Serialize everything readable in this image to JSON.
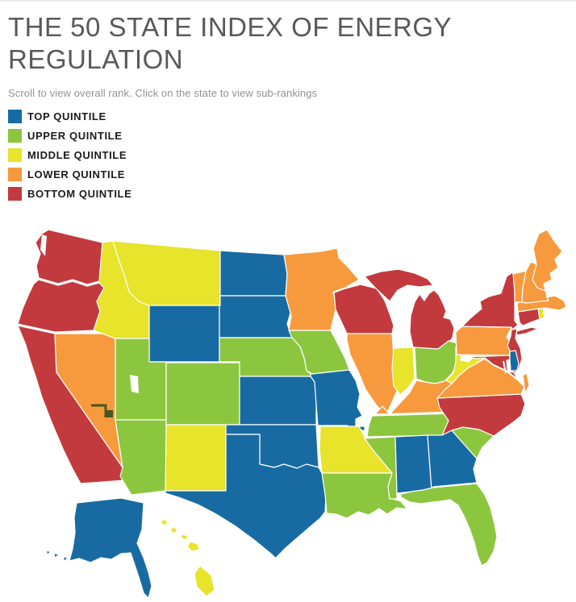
{
  "page": {
    "title": "THE 50 STATE INDEX OF ENERGY REGULATION",
    "subtitle": "Scroll to view overall rank. Click on the state to view sub-rankings"
  },
  "legend": {
    "items": [
      {
        "key": "top",
        "label": "TOP QUINTILE",
        "color": "#186BA2"
      },
      {
        "key": "upper",
        "label": "UPPER QUINTILE",
        "color": "#8CC63F"
      },
      {
        "key": "middle",
        "label": "MIDDLE QUINTILE",
        "color": "#E8E32B"
      },
      {
        "key": "lower",
        "label": "LOWER QUINTILE",
        "color": "#F79A3D"
      },
      {
        "key": "bottom",
        "label": "BOTTOM QUINTILE",
        "color": "#C23A3E"
      }
    ]
  },
  "map": {
    "states": [
      {
        "id": "WA",
        "name": "Washington",
        "quintile": "bottom"
      },
      {
        "id": "OR",
        "name": "Oregon",
        "quintile": "bottom"
      },
      {
        "id": "CA",
        "name": "California",
        "quintile": "bottom"
      },
      {
        "id": "NV",
        "name": "Nevada",
        "quintile": "lower"
      },
      {
        "id": "ID",
        "name": "Idaho",
        "quintile": "middle"
      },
      {
        "id": "MT",
        "name": "Montana",
        "quintile": "middle"
      },
      {
        "id": "WY",
        "name": "Wyoming",
        "quintile": "top"
      },
      {
        "id": "UT",
        "name": "Utah",
        "quintile": "upper"
      },
      {
        "id": "AZ",
        "name": "Arizona",
        "quintile": "upper"
      },
      {
        "id": "CO",
        "name": "Colorado",
        "quintile": "upper"
      },
      {
        "id": "NM",
        "name": "New Mexico",
        "quintile": "middle"
      },
      {
        "id": "ND",
        "name": "North Dakota",
        "quintile": "top"
      },
      {
        "id": "SD",
        "name": "South Dakota",
        "quintile": "top"
      },
      {
        "id": "NE",
        "name": "Nebraska",
        "quintile": "upper"
      },
      {
        "id": "KS",
        "name": "Kansas",
        "quintile": "top"
      },
      {
        "id": "OK",
        "name": "Oklahoma",
        "quintile": "top"
      },
      {
        "id": "TX",
        "name": "Texas",
        "quintile": "top"
      },
      {
        "id": "MN",
        "name": "Minnesota",
        "quintile": "lower"
      },
      {
        "id": "IA",
        "name": "Iowa",
        "quintile": "upper"
      },
      {
        "id": "MO",
        "name": "Missouri",
        "quintile": "top"
      },
      {
        "id": "AR",
        "name": "Arkansas",
        "quintile": "middle"
      },
      {
        "id": "LA",
        "name": "Louisiana",
        "quintile": "upper"
      },
      {
        "id": "WI",
        "name": "Wisconsin",
        "quintile": "bottom"
      },
      {
        "id": "IL",
        "name": "Illinois",
        "quintile": "lower"
      },
      {
        "id": "MI",
        "name": "Michigan",
        "quintile": "bottom"
      },
      {
        "id": "IN",
        "name": "Indiana",
        "quintile": "middle"
      },
      {
        "id": "OH",
        "name": "Ohio",
        "quintile": "upper"
      },
      {
        "id": "KY",
        "name": "Kentucky",
        "quintile": "lower"
      },
      {
        "id": "TN",
        "name": "Tennessee",
        "quintile": "upper"
      },
      {
        "id": "MS",
        "name": "Mississippi",
        "quintile": "upper"
      },
      {
        "id": "AL",
        "name": "Alabama",
        "quintile": "top"
      },
      {
        "id": "GA",
        "name": "Georgia",
        "quintile": "top"
      },
      {
        "id": "SC",
        "name": "South Carolina",
        "quintile": "upper"
      },
      {
        "id": "NC",
        "name": "North Carolina",
        "quintile": "bottom"
      },
      {
        "id": "VA",
        "name": "Virginia",
        "quintile": "lower"
      },
      {
        "id": "WV",
        "name": "West Virginia",
        "quintile": "middle"
      },
      {
        "id": "FL",
        "name": "Florida",
        "quintile": "upper"
      },
      {
        "id": "PA",
        "name": "Pennsylvania",
        "quintile": "lower"
      },
      {
        "id": "NY",
        "name": "New York",
        "quintile": "bottom"
      },
      {
        "id": "NJ",
        "name": "New Jersey",
        "quintile": "bottom"
      },
      {
        "id": "MD",
        "name": "Maryland",
        "quintile": "bottom"
      },
      {
        "id": "DE",
        "name": "Delaware",
        "quintile": "top"
      },
      {
        "id": "CT",
        "name": "Connecticut",
        "quintile": "bottom"
      },
      {
        "id": "RI",
        "name": "Rhode Island",
        "quintile": "middle"
      },
      {
        "id": "MA",
        "name": "Massachusetts",
        "quintile": "lower"
      },
      {
        "id": "VT",
        "name": "Vermont",
        "quintile": "lower"
      },
      {
        "id": "NH",
        "name": "New Hampshire",
        "quintile": "lower"
      },
      {
        "id": "ME",
        "name": "Maine",
        "quintile": "lower"
      },
      {
        "id": "AK",
        "name": "Alaska",
        "quintile": "top"
      },
      {
        "id": "HI",
        "name": "Hawaii",
        "quintile": "middle"
      }
    ]
  }
}
